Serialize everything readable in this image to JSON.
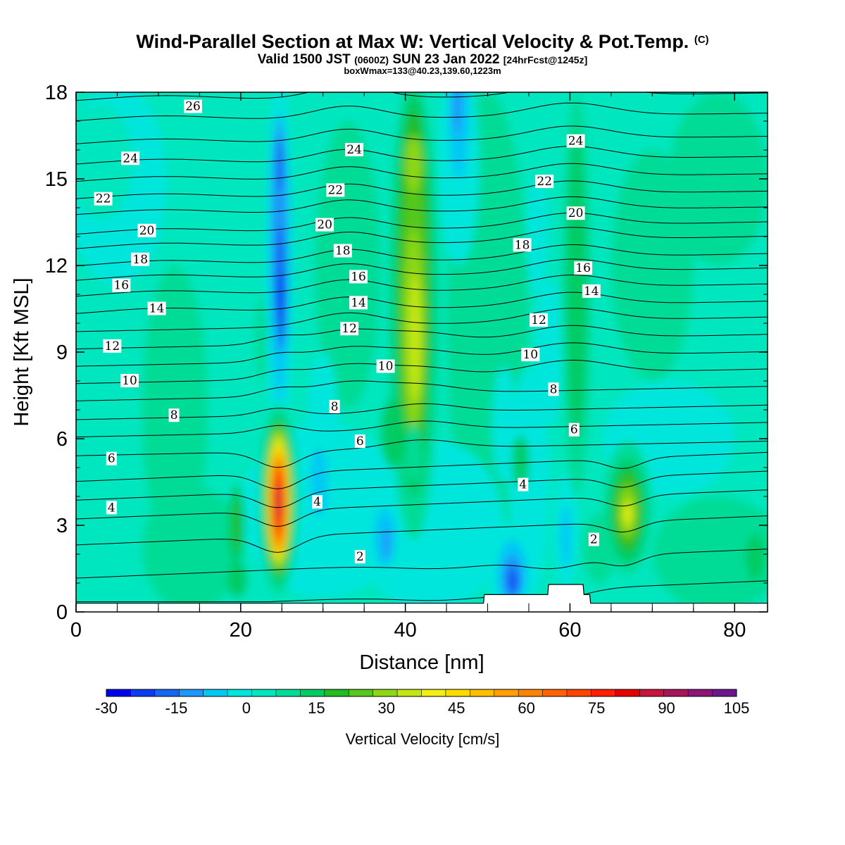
{
  "title": {
    "main": "Wind-Parallel Section at Max W: Vertical Velocity & Pot.Temp.",
    "copyright": "(C)",
    "valid_prefix": "Valid 1500 JST",
    "utc": "(0600Z)",
    "valid_date": "SUN 23 Jan 2022",
    "forecast": "[24hrFcst@1245z]",
    "box_info": "boxWmax=133@40.23,139.60,1223m"
  },
  "chart_data": {
    "type": "heatmap",
    "xlabel": "Distance [nm]",
    "ylabel": "Height [Kft MSL]",
    "xlim": [
      0,
      84
    ],
    "ylim": [
      0,
      18
    ],
    "x_ticks": [
      0,
      20,
      40,
      60,
      80
    ],
    "y_ticks": [
      0,
      3,
      6,
      9,
      12,
      15,
      18
    ],
    "colorbar": {
      "title": "Vertical Velocity [cm/s]",
      "levels": [
        -30,
        -25,
        -20,
        -15,
        -10,
        -5,
        0,
        5,
        10,
        15,
        20,
        25,
        30,
        35,
        40,
        45,
        50,
        55,
        60,
        65,
        70,
        75,
        80,
        85,
        90,
        95,
        100,
        105
      ],
      "tick_labels": [
        "-30",
        "-15",
        "0",
        "15",
        "30",
        "45",
        "60",
        "75",
        "90",
        "105"
      ],
      "tick_values": [
        -30,
        -15,
        0,
        15,
        30,
        45,
        60,
        75,
        90,
        105
      ],
      "colors": [
        "#0000ee",
        "#0a3cf0",
        "#1466f5",
        "#1e96fa",
        "#00c8f5",
        "#00e6dc",
        "#00e6be",
        "#00dc96",
        "#00cc64",
        "#22bb22",
        "#55c81e",
        "#8ed714",
        "#c3e614",
        "#f0f014",
        "#ffdc00",
        "#ffbe00",
        "#ffa000",
        "#ff8200",
        "#ff6400",
        "#ff4600",
        "#ff1e00",
        "#e60000",
        "#c8143c",
        "#aa145a",
        "#8c1478",
        "#6e148c"
      ]
    },
    "background_value": 2.5,
    "features": [
      {
        "kind": "updraft",
        "x": 24.6,
        "y": 3.8,
        "peak": 80,
        "note": "max updraft core near x=25 nm, ~2-6 kft"
      },
      {
        "kind": "updraft",
        "x": 41,
        "y": 10.5,
        "peak": 40,
        "note": "deep column x~40-42 nm, 6-18 kft"
      },
      {
        "kind": "updraft",
        "x": 67,
        "y": 3.5,
        "peak": 37,
        "note": "low-level updraft x~67 nm"
      },
      {
        "kind": "updraft",
        "x": 60.5,
        "y": 11,
        "peak": 14
      },
      {
        "kind": "updraft",
        "x": 19.5,
        "y": 3,
        "peak": 17
      },
      {
        "kind": "downdraft",
        "x": 24.7,
        "y": 12,
        "peak": -22,
        "note": "narrow column x~24-25 nm, 8-17 kft"
      },
      {
        "kind": "downdraft",
        "x": 46.5,
        "y": 16.5,
        "peak": -12
      },
      {
        "kind": "downdraft",
        "x": 53,
        "y": 1.2,
        "peak": -25
      },
      {
        "kind": "downdraft",
        "x": 59.5,
        "y": 2.6,
        "peak": -10
      },
      {
        "kind": "downdraft",
        "x": 37.5,
        "y": 2.5,
        "peak": -12
      }
    ],
    "terrain": [
      [
        0,
        0.3
      ],
      [
        49.5,
        0.3
      ],
      [
        49.6,
        0.6
      ],
      [
        57.3,
        0.6
      ],
      [
        57.4,
        0.95
      ],
      [
        61.6,
        0.95
      ],
      [
        61.7,
        0.6
      ],
      [
        62.4,
        0.6
      ],
      [
        62.5,
        0.3
      ],
      [
        84,
        0.3
      ]
    ],
    "isentropes": {
      "variable": "Potential Temperature",
      "levels": [
        1,
        2,
        3,
        4,
        5,
        6,
        7,
        8,
        9,
        10,
        11,
        12,
        13,
        14,
        15,
        16,
        17,
        18,
        19,
        20,
        21,
        22,
        23,
        24,
        25,
        26,
        27
      ],
      "base_heights_kft": [
        0.55,
        1.65,
        2.8,
        3.7,
        4.35,
        5.0,
        5.65,
        6.3,
        6.9,
        7.55,
        8.15,
        8.75,
        9.35,
        9.95,
        10.5,
        11.1,
        11.65,
        12.15,
        12.75,
        13.25,
        13.85,
        14.4,
        15.0,
        15.6,
        16.3,
        17.1,
        17.8
      ],
      "labels": [
        {
          "text": "26",
          "x": 14.2,
          "y": 17.5
        },
        {
          "text": "24",
          "x": 6.6,
          "y": 15.7
        },
        {
          "text": "24",
          "x": 33.8,
          "y": 16.0
        },
        {
          "text": "24",
          "x": 60.7,
          "y": 16.3
        },
        {
          "text": "22",
          "x": 3.3,
          "y": 14.3
        },
        {
          "text": "22",
          "x": 31.5,
          "y": 14.6
        },
        {
          "text": "22",
          "x": 56.9,
          "y": 14.9
        },
        {
          "text": "20",
          "x": 8.6,
          "y": 13.2
        },
        {
          "text": "20",
          "x": 30.2,
          "y": 13.4
        },
        {
          "text": "20",
          "x": 60.7,
          "y": 13.8
        },
        {
          "text": "18",
          "x": 7.8,
          "y": 12.2
        },
        {
          "text": "18",
          "x": 32.4,
          "y": 12.5
        },
        {
          "text": "18",
          "x": 54.2,
          "y": 12.7
        },
        {
          "text": "16",
          "x": 5.5,
          "y": 11.3
        },
        {
          "text": "16",
          "x": 34.3,
          "y": 11.6
        },
        {
          "text": "16",
          "x": 61.6,
          "y": 11.9
        },
        {
          "text": "14",
          "x": 9.8,
          "y": 10.5
        },
        {
          "text": "14",
          "x": 34.3,
          "y": 10.7
        },
        {
          "text": "14",
          "x": 62.6,
          "y": 11.1
        },
        {
          "text": "12",
          "x": 4.4,
          "y": 9.2
        },
        {
          "text": "12",
          "x": 33.2,
          "y": 9.8
        },
        {
          "text": "12",
          "x": 56.2,
          "y": 10.1
        },
        {
          "text": "10",
          "x": 6.5,
          "y": 8.0
        },
        {
          "text": "10",
          "x": 37.6,
          "y": 8.5
        },
        {
          "text": "10",
          "x": 55.2,
          "y": 8.9
        },
        {
          "text": "8",
          "x": 11.9,
          "y": 6.8
        },
        {
          "text": "8",
          "x": 31.4,
          "y": 7.1
        },
        {
          "text": "8",
          "x": 58.0,
          "y": 7.7
        },
        {
          "text": "6",
          "x": 4.3,
          "y": 5.3
        },
        {
          "text": "6",
          "x": 34.5,
          "y": 5.9
        },
        {
          "text": "6",
          "x": 60.5,
          "y": 6.3
        },
        {
          "text": "4",
          "x": 4.3,
          "y": 3.6
        },
        {
          "text": "4",
          "x": 29.3,
          "y": 3.8
        },
        {
          "text": "4",
          "x": 54.3,
          "y": 4.4
        },
        {
          "text": "2",
          "x": 34.5,
          "y": 1.9
        },
        {
          "text": "2",
          "x": 62.9,
          "y": 2.5
        }
      ]
    }
  }
}
